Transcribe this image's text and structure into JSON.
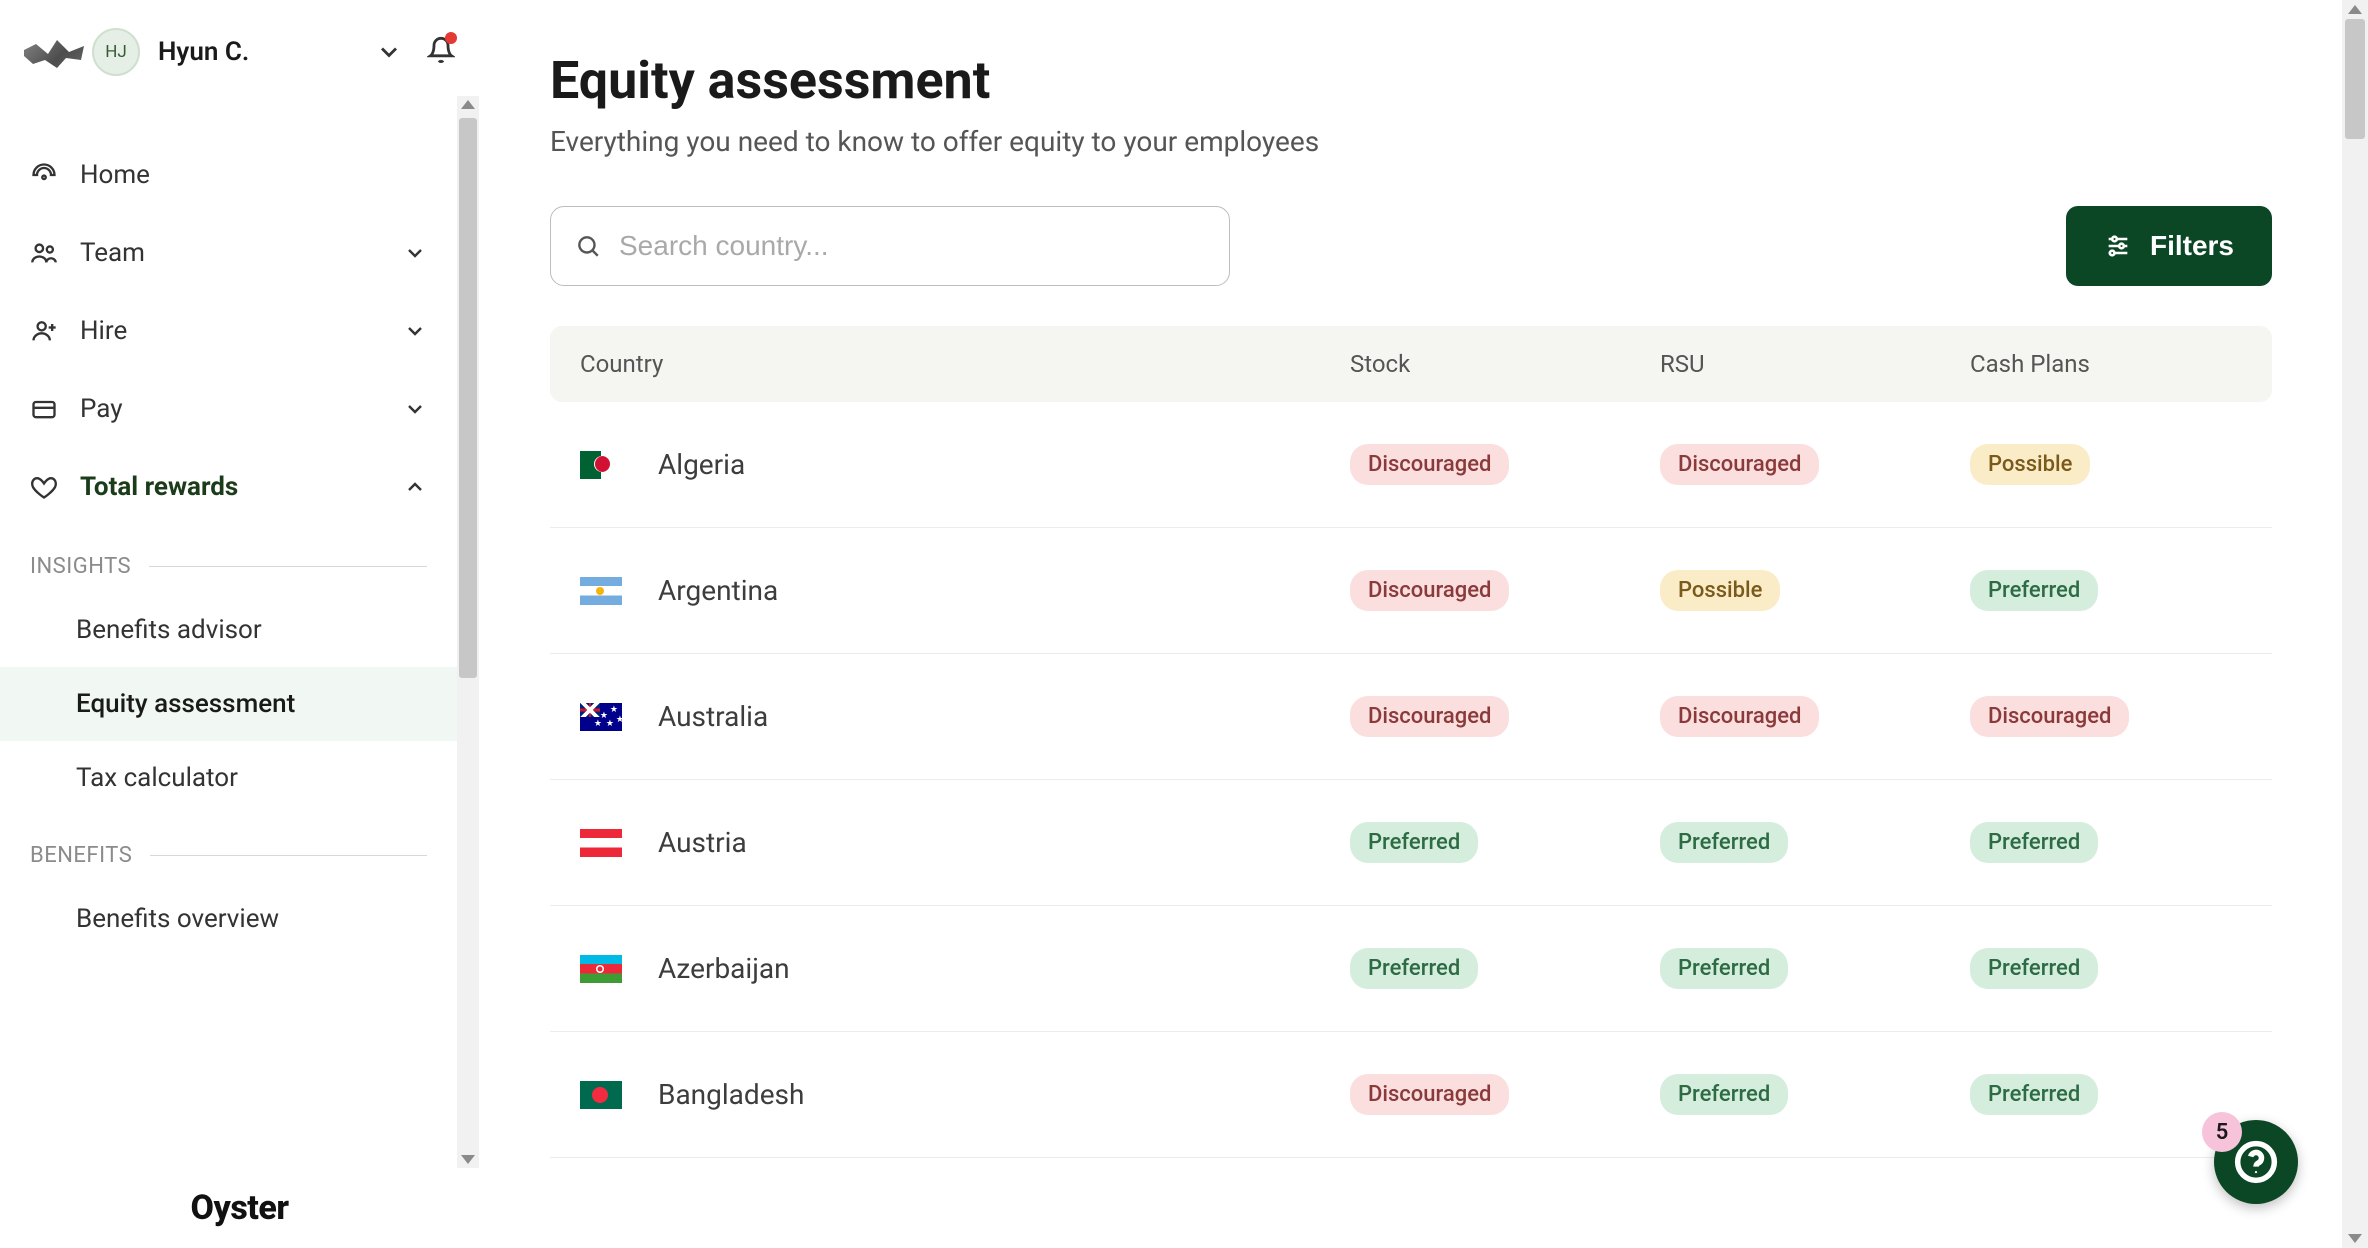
{
  "user": {
    "initials": "HJ",
    "name": "Hyun C."
  },
  "sidebar": {
    "items": [
      {
        "icon": "gauge",
        "label": "Home",
        "expandable": false
      },
      {
        "icon": "users",
        "label": "Team",
        "expandable": true
      },
      {
        "icon": "user-plus",
        "label": "Hire",
        "expandable": true
      },
      {
        "icon": "credit-card",
        "label": "Pay",
        "expandable": true
      },
      {
        "icon": "heart",
        "label": "Total rewards",
        "expandable": true,
        "expanded": true
      }
    ],
    "sections": [
      {
        "heading": "INSIGHTS",
        "items": [
          {
            "label": "Benefits advisor"
          },
          {
            "label": "Equity assessment",
            "active": true
          },
          {
            "label": "Tax calculator"
          }
        ]
      },
      {
        "heading": "BENEFITS",
        "items": [
          {
            "label": "Benefits overview"
          }
        ]
      }
    ],
    "brand": "Oyster"
  },
  "page": {
    "title": "Equity assessment",
    "subtitle": "Everything you need to know to offer equity to your employees"
  },
  "search": {
    "placeholder": "Search country..."
  },
  "filters_label": "Filters",
  "table": {
    "columns": [
      "Country",
      "Stock",
      "RSU",
      "Cash Plans"
    ],
    "rows": [
      {
        "flag": "dz",
        "country": "Algeria",
        "stock": "Discouraged",
        "rsu": "Discouraged",
        "cash": "Possible"
      },
      {
        "flag": "ar",
        "country": "Argentina",
        "stock": "Discouraged",
        "rsu": "Possible",
        "cash": "Preferred"
      },
      {
        "flag": "au",
        "country": "Australia",
        "stock": "Discouraged",
        "rsu": "Discouraged",
        "cash": "Discouraged"
      },
      {
        "flag": "at",
        "country": "Austria",
        "stock": "Preferred",
        "rsu": "Preferred",
        "cash": "Preferred"
      },
      {
        "flag": "az",
        "country": "Azerbaijan",
        "stock": "Preferred",
        "rsu": "Preferred",
        "cash": "Preferred"
      },
      {
        "flag": "bd",
        "country": "Bangladesh",
        "stock": "Discouraged",
        "rsu": "Preferred",
        "cash": "Preferred"
      }
    ]
  },
  "pill_styles": {
    "Discouraged": {
      "bg": "#fbdede",
      "fg": "#8a3a3a"
    },
    "Possible": {
      "bg": "#fbecc8",
      "fg": "#7a5a1a"
    },
    "Preferred": {
      "bg": "#d5eddd",
      "fg": "#2c6b44"
    }
  },
  "fab": {
    "badge_count": "5"
  },
  "colors": {
    "brand_green": "#0b4625",
    "sidebar_active_bg": "#f1f7f2",
    "table_header_bg": "#f5f5f2"
  }
}
